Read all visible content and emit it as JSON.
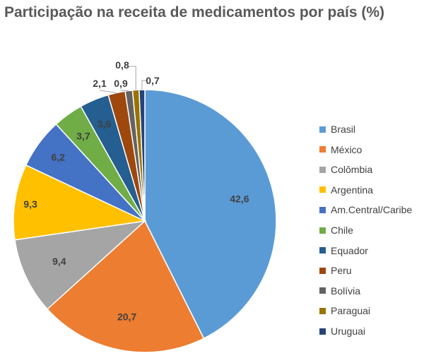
{
  "chart_data": {
    "type": "pie",
    "title": "Participação na receita de medicamentos por país (%)",
    "legend_position": "right",
    "slices": [
      {
        "name": "Brasil",
        "value": 42.6,
        "label": "42,6",
        "color": "#5B9BD5"
      },
      {
        "name": "México",
        "value": 20.7,
        "label": "20,7",
        "color": "#ED7D31"
      },
      {
        "name": "Colômbia",
        "value": 9.4,
        "label": "9,4",
        "color": "#A5A5A5"
      },
      {
        "name": "Argentina",
        "value": 9.3,
        "label": "9,3",
        "color": "#FFC000"
      },
      {
        "name": "Am.Central/Caribe",
        "value": 6.2,
        "label": "6,2",
        "color": "#4472C4"
      },
      {
        "name": "Chile",
        "value": 3.7,
        "label": "3,7",
        "color": "#70AD47"
      },
      {
        "name": "Equador",
        "value": 3.6,
        "label": "3,6",
        "color": "#255E91"
      },
      {
        "name": "Peru",
        "value": 2.1,
        "label": "2,1",
        "color": "#9E480E"
      },
      {
        "name": "Bolívia",
        "value": 0.9,
        "label": "0,9",
        "color": "#636363"
      },
      {
        "name": "Paraguai",
        "value": 0.8,
        "label": "0,8",
        "color": "#997300"
      },
      {
        "name": "Uruguai",
        "value": 0.7,
        "label": "0,7",
        "color": "#264478"
      }
    ]
  }
}
